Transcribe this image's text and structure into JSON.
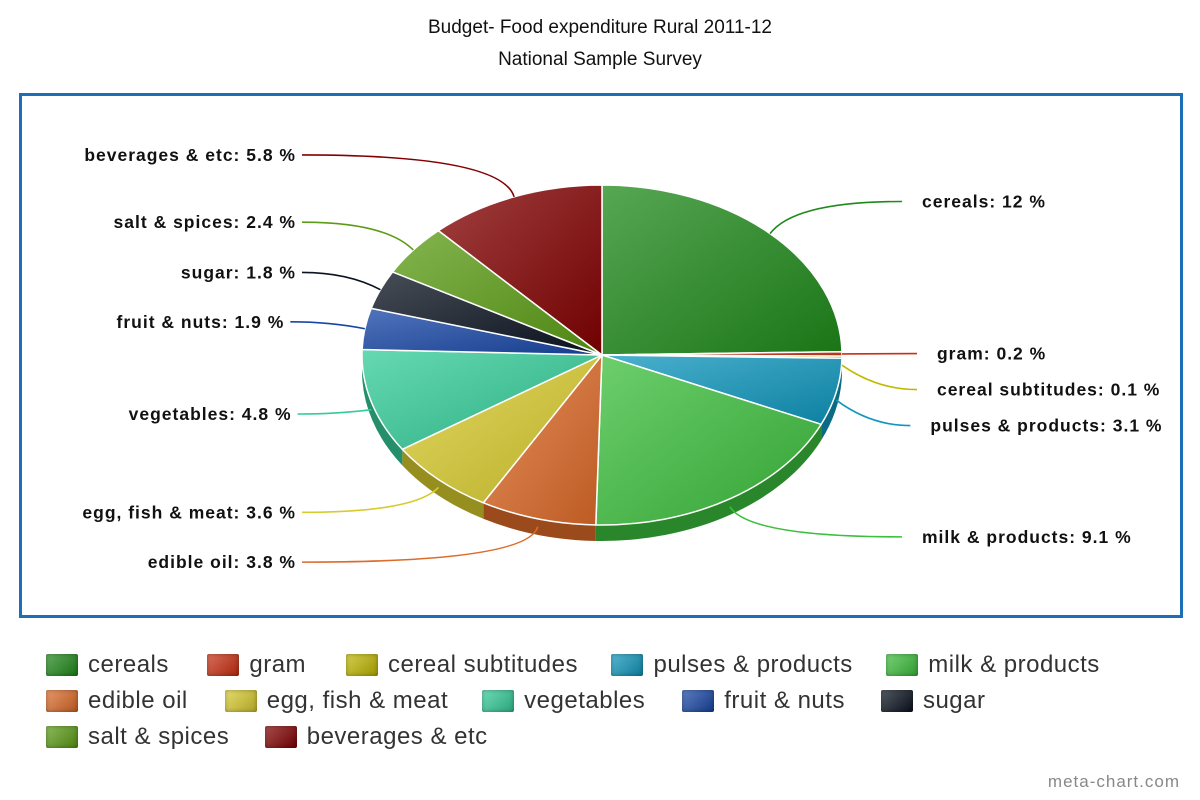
{
  "chart_data": {
    "type": "pie",
    "title": "Budget- Food expenditure Rural 2011-12",
    "subtitle": "National Sample Survey",
    "unit": "%",
    "series": [
      {
        "name": "cereals",
        "label": "cereals: 12 %",
        "value": 12,
        "color": "#1f8a1a",
        "legend": "cereals"
      },
      {
        "name": "gram",
        "label": "gram: 0.2 %",
        "value": 0.2,
        "color": "#cc2e12",
        "legend": "gram"
      },
      {
        "name": "cereal subtitudes",
        "label": "cereal subtitudes: 0.1 %",
        "value": 0.1,
        "color": "#c2b800",
        "legend": "cereal subtitudes"
      },
      {
        "name": "pulses & products",
        "label": "pulses & products: 3.1 %",
        "value": 3.1,
        "color": "#0f97bd",
        "legend": "pulses & products"
      },
      {
        "name": "milk & products",
        "label": "milk & products: 9.1 %",
        "value": 9.1,
        "color": "#3cbf3c",
        "legend": "milk & products"
      },
      {
        "name": "edible oil",
        "label": "edible oil: 3.8 %",
        "value": 3.8,
        "color": "#dd6a28",
        "legend": "edible oil"
      },
      {
        "name": "egg, fish & meat",
        "label": "egg, fish & meat: 3.6 %",
        "value": 3.6,
        "color": "#d8cb2e",
        "legend": "egg, fish & meat"
      },
      {
        "name": "vegetables",
        "label": "vegetables: 4.8 %",
        "value": 4.8,
        "color": "#33cc98",
        "legend": "vegetables"
      },
      {
        "name": "fruit & nuts",
        "label": "fruit & nuts: 1.9 %",
        "value": 1.9,
        "color": "#1746a6",
        "legend": "fruit & nuts"
      },
      {
        "name": "sugar",
        "label": "sugar: 1.8 %",
        "value": 1.8,
        "color": "#0a1320",
        "legend": "sugar"
      },
      {
        "name": "salt & spices",
        "label": "salt & spices: 2.4 %",
        "value": 2.4,
        "color": "#5b9c14",
        "legend": "salt & spices"
      },
      {
        "name": "beverages & etc",
        "label": "beverages & etc: 5.8 %",
        "value": 5.8,
        "color": "#820000",
        "legend": "beverages & etc"
      }
    ]
  },
  "credit": "meta-chart.com"
}
